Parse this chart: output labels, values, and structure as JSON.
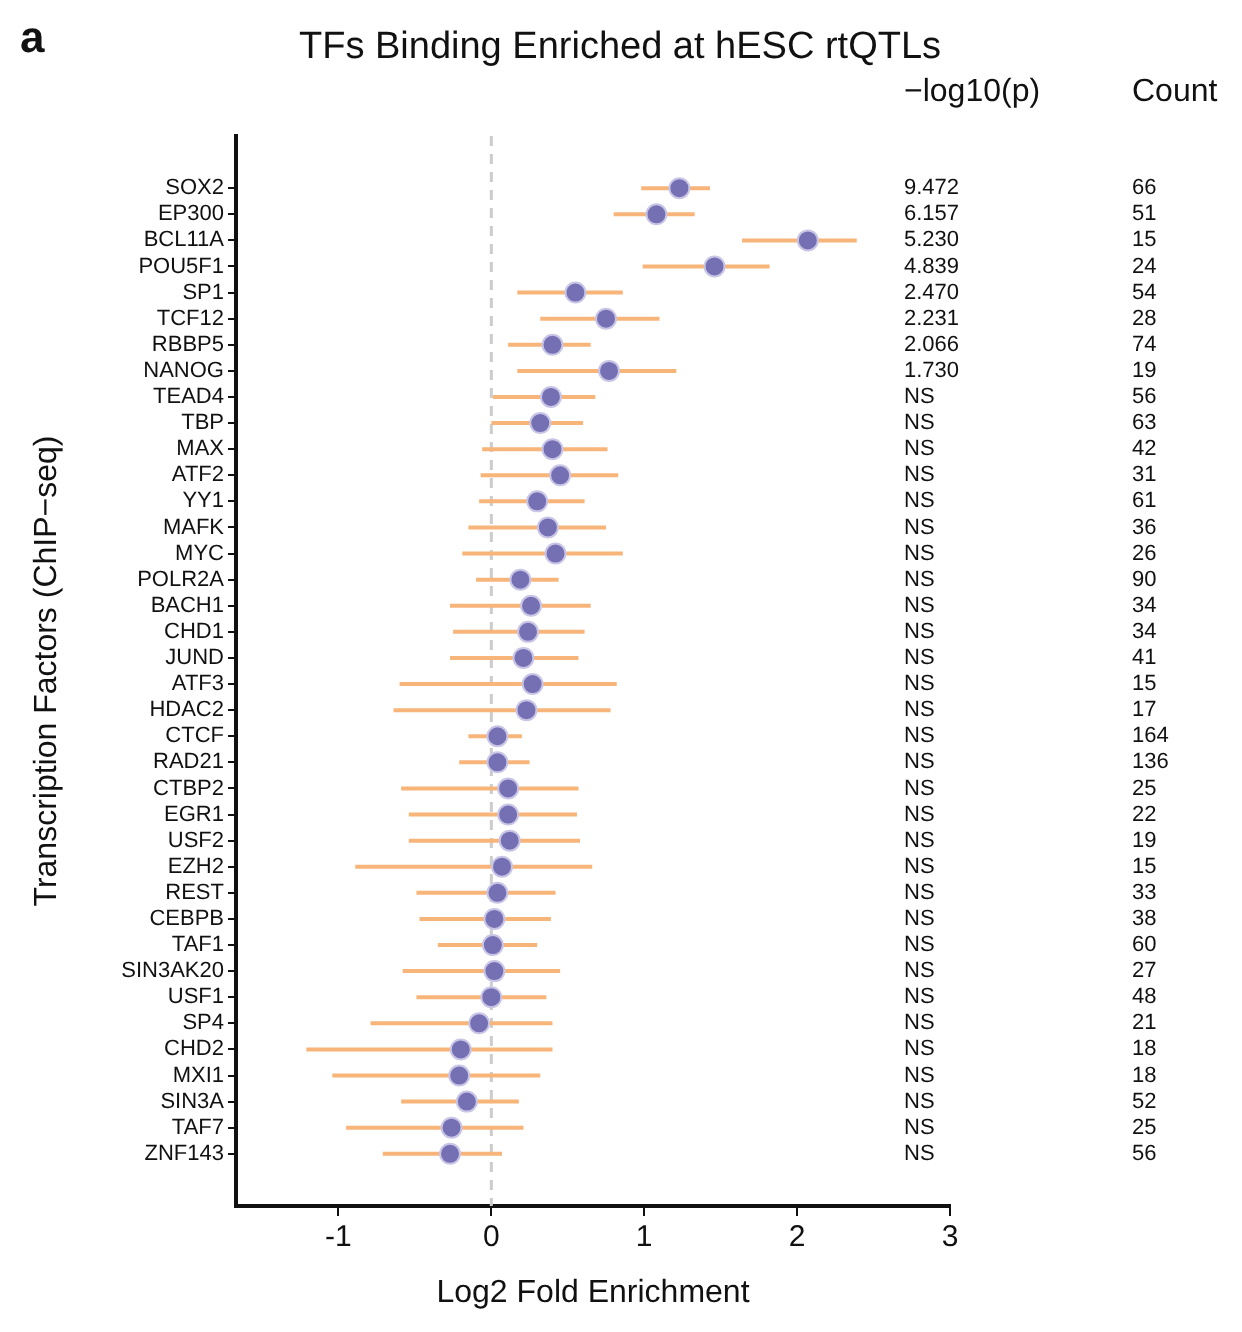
{
  "chart_data": {
    "type": "scatter",
    "orientation": "horizontal",
    "title": "TFs Binding Enriched at hESC rtQTLs",
    "xlabel": "Log2 Fold Enrichment",
    "ylabel": "Transcription Factors (ChIP−seq)",
    "categories": [
      "SOX2",
      "EP300",
      "BCL11A",
      "POU5F1",
      "SP1",
      "TCF12",
      "RBBP5",
      "NANOG",
      "TEAD4",
      "TBP",
      "MAX",
      "ATF2",
      "YY1",
      "MAFK",
      "MYC",
      "POLR2A",
      "BACH1",
      "CHD1",
      "JUND",
      "ATF3",
      "HDAC2",
      "CTCF",
      "RAD21",
      "CTBP2",
      "EGR1",
      "USF2",
      "EZH2",
      "REST",
      "CEBPB",
      "TAF1",
      "SIN3AK20",
      "USF1",
      "SP4",
      "CHD2",
      "MXI1",
      "SIN3A",
      "TAF7",
      "ZNF143"
    ],
    "series": [
      {
        "color": "#7570b3",
        "values": [
          1.23,
          1.08,
          2.07,
          1.46,
          0.55,
          0.75,
          0.4,
          0.77,
          0.39,
          0.32,
          0.4,
          0.45,
          0.3,
          0.37,
          0.42,
          0.19,
          0.26,
          0.24,
          0.21,
          0.27,
          0.23,
          0.04,
          0.04,
          0.11,
          0.11,
          0.12,
          0.07,
          0.04,
          0.02,
          0.01,
          0.02,
          0.0,
          -0.08,
          -0.2,
          -0.21,
          -0.16,
          -0.26,
          -0.27
        ],
        "errors": [
          [
            0.98,
            1.43
          ],
          [
            0.8,
            1.33
          ],
          [
            1.64,
            2.39
          ],
          [
            0.99,
            1.82
          ],
          [
            0.17,
            0.86
          ],
          [
            0.32,
            1.1
          ],
          [
            0.11,
            0.65
          ],
          [
            0.17,
            1.21
          ],
          [
            0.01,
            0.68
          ],
          [
            0.0,
            0.6
          ],
          [
            -0.06,
            0.76
          ],
          [
            -0.07,
            0.83
          ],
          [
            -0.08,
            0.61
          ],
          [
            -0.15,
            0.75
          ],
          [
            -0.19,
            0.86
          ],
          [
            -0.1,
            0.44
          ],
          [
            -0.27,
            0.65
          ],
          [
            -0.25,
            0.61
          ],
          [
            -0.27,
            0.57
          ],
          [
            -0.6,
            0.82
          ],
          [
            -0.64,
            0.78
          ],
          [
            -0.15,
            0.2
          ],
          [
            -0.21,
            0.25
          ],
          [
            -0.59,
            0.57
          ],
          [
            -0.54,
            0.56
          ],
          [
            -0.54,
            0.58
          ],
          [
            -0.89,
            0.66
          ],
          [
            -0.49,
            0.42
          ],
          [
            -0.47,
            0.39
          ],
          [
            -0.35,
            0.3
          ],
          [
            -0.58,
            0.45
          ],
          [
            -0.49,
            0.36
          ],
          [
            -0.79,
            0.4
          ],
          [
            -1.21,
            0.4
          ],
          [
            -1.04,
            0.32
          ],
          [
            -0.59,
            0.18
          ],
          [
            -0.95,
            0.21
          ],
          [
            -0.71,
            0.07
          ]
        ]
      }
    ],
    "xlim": [
      -1.67,
      3.0
    ],
    "xticks": [
      -1,
      0,
      1,
      2,
      3
    ],
    "grid": false,
    "legend": false,
    "marker": "circle",
    "ref_lines": [
      {
        "axis": "x",
        "value": 0,
        "color": "#cccccc",
        "line_style": "dashed"
      }
    ],
    "annotations": [
      "a",
      "−log10(p)",
      "Count",
      "9.472",
      "66",
      "6.157",
      "51",
      "5.230",
      "15",
      "4.839",
      "24",
      "2.470",
      "54",
      "2.231",
      "28",
      "2.066",
      "74",
      "1.730",
      "19",
      "NS",
      "56",
      "NS",
      "63",
      "NS",
      "42",
      "NS",
      "31",
      "NS",
      "61",
      "NS",
      "36",
      "NS",
      "26",
      "NS",
      "90",
      "NS",
      "34",
      "NS",
      "34",
      "NS",
      "41",
      "NS",
      "15",
      "NS",
      "17",
      "NS",
      "164",
      "NS",
      "136",
      "NS",
      "25",
      "NS",
      "22",
      "NS",
      "19",
      "NS",
      "15",
      "NS",
      "33",
      "NS",
      "38",
      "NS",
      "60",
      "NS",
      "27",
      "NS",
      "48",
      "NS",
      "21",
      "NS",
      "18",
      "NS",
      "18",
      "NS",
      "52",
      "NS",
      "25",
      "NS",
      "56"
    ]
  }
}
